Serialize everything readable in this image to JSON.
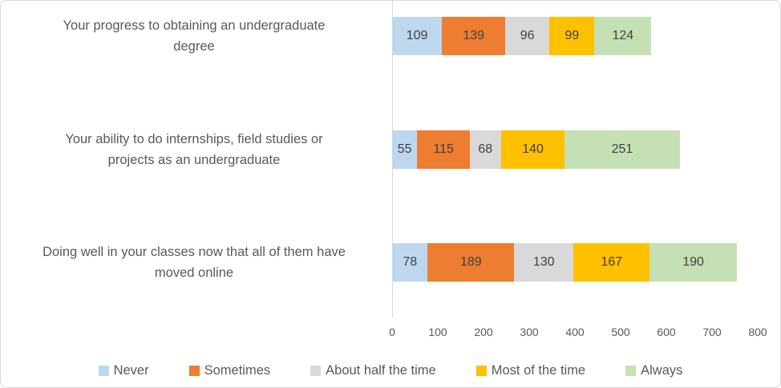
{
  "chart_data": {
    "type": "bar",
    "orientation": "horizontal",
    "stacked": true,
    "title": "",
    "xlabel": "",
    "ylabel": "",
    "xlim": [
      0,
      800
    ],
    "x_ticks": [
      0,
      100,
      200,
      300,
      400,
      500,
      600,
      700,
      800
    ],
    "grid": false,
    "legend_position": "bottom",
    "axis_color": "#d9d9d9",
    "text_color": "#595959",
    "data_label_color": "#404040",
    "categories": [
      "Your progress to obtaining an undergraduate\ndegree",
      "Your ability to do internships, field studies or\nprojects as an undergraduate",
      "Doing well in your classes now that all of them have\nmoved online"
    ],
    "series": [
      {
        "name": "Never",
        "color": "#BDD7EE",
        "values": [
          109,
          55,
          78
        ]
      },
      {
        "name": "Sometimes",
        "color": "#ED7D31",
        "values": [
          139,
          115,
          189
        ]
      },
      {
        "name": "About half the time",
        "color": "#D9D9D9",
        "values": [
          96,
          68,
          130
        ]
      },
      {
        "name": "Most of the time",
        "color": "#FFC000",
        "values": [
          99,
          140,
          167
        ]
      },
      {
        "name": "Always",
        "color": "#C5E0B4",
        "values": [
          124,
          251,
          190
        ]
      }
    ]
  }
}
